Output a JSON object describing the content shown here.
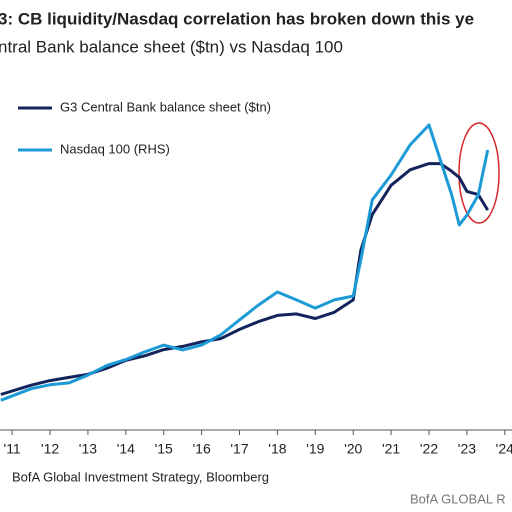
{
  "chart_data": {
    "type": "line",
    "title": "3: CB liquidity/Nasdaq correlation has broken down this ye",
    "subtitle": "ntral Bank balance sheet ($tn) vs Nasdaq 100",
    "source": "BofA Global Investment Strategy, Bloomberg",
    "footer": "BofA GLOBAL R",
    "x": [
      2010.7,
      2011.5,
      2012,
      2012.5,
      2013,
      2013.5,
      2014,
      2014.5,
      2015,
      2015.5,
      2016,
      2016.5,
      2017,
      2017.5,
      2018,
      2018.5,
      2019,
      2019.5,
      2020,
      2020.2,
      2020.5,
      2021,
      2021.5,
      2022,
      2022.3,
      2022.6,
      2022.8,
      2023,
      2023.3,
      2023.55
    ],
    "xlim": [
      2010.68,
      2024.19
    ],
    "xticks": [
      {
        "value": 2011,
        "label": "'11"
      },
      {
        "value": 2012,
        "label": "'12"
      },
      {
        "value": 2013,
        "label": "'13"
      },
      {
        "value": 2014,
        "label": "'14"
      },
      {
        "value": 2015,
        "label": "'15"
      },
      {
        "value": 2016,
        "label": "'16"
      },
      {
        "value": 2017,
        "label": "'17"
      },
      {
        "value": 2018,
        "label": "'18"
      },
      {
        "value": 2019,
        "label": "'19"
      },
      {
        "value": 2020,
        "label": "'20"
      },
      {
        "value": 2021,
        "label": "'21"
      },
      {
        "value": 2022,
        "label": "'22"
      },
      {
        "value": 2023,
        "label": "'23"
      },
      {
        "value": 2024,
        "label": "'24"
      }
    ],
    "ylim": [
      8,
      28
    ],
    "y2lim": [
      1000,
      17000
    ],
    "series": [
      {
        "name": "G3 Central Bank balance sheet ($tn)",
        "color": "#13235b",
        "values": [
          9.0,
          9.6,
          9.9,
          10.1,
          10.3,
          10.7,
          11.2,
          11.5,
          11.9,
          12.1,
          12.4,
          12.6,
          13.2,
          13.7,
          14.1,
          14.2,
          13.9,
          14.3,
          15.1,
          18.3,
          20.6,
          22.5,
          23.5,
          23.9,
          23.9,
          23.4,
          23.0,
          22.1,
          21.9,
          20.9
        ]
      },
      {
        "name": "Nasdaq 100 (RHS)",
        "color": "#1c9ad6",
        "axis": "y2",
        "values": [
          1500,
          2100,
          2300,
          2400,
          2800,
          3300,
          3600,
          4000,
          4350,
          4100,
          4350,
          4870,
          5650,
          6420,
          7090,
          6680,
          6260,
          6680,
          6880,
          8740,
          11840,
          13130,
          14680,
          15710,
          13900,
          12100,
          10550,
          11060,
          12100,
          14420
        ]
      }
    ]
  }
}
